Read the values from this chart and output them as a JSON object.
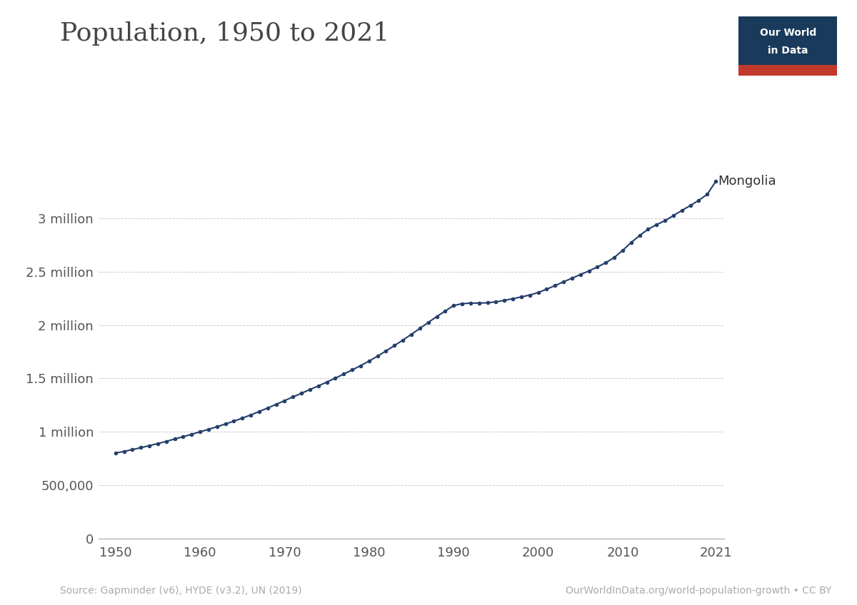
{
  "title": "Population, 1950 to 2021",
  "line_color": "#243f6b",
  "background_color": "#ffffff",
  "years": [
    1950,
    1951,
    1952,
    1953,
    1954,
    1955,
    1956,
    1957,
    1958,
    1959,
    1960,
    1961,
    1962,
    1963,
    1964,
    1965,
    1966,
    1967,
    1968,
    1969,
    1970,
    1971,
    1972,
    1973,
    1974,
    1975,
    1976,
    1977,
    1978,
    1979,
    1980,
    1981,
    1982,
    1983,
    1984,
    1985,
    1986,
    1987,
    1988,
    1989,
    1990,
    1991,
    1992,
    1993,
    1994,
    1995,
    1996,
    1997,
    1998,
    1999,
    2000,
    2001,
    2002,
    2003,
    2004,
    2005,
    2006,
    2007,
    2008,
    2009,
    2010,
    2011,
    2012,
    2013,
    2014,
    2015,
    2016,
    2017,
    2018,
    2019,
    2020,
    2021
  ],
  "population": [
    800000,
    816000,
    833000,
    851000,
    870000,
    889000,
    910000,
    932000,
    954000,
    976000,
    1000000,
    1023000,
    1047000,
    1073000,
    1099000,
    1128000,
    1158000,
    1190000,
    1223000,
    1257000,
    1292000,
    1327000,
    1361000,
    1396000,
    1430000,
    1466000,
    1503000,
    1541000,
    1580000,
    1620000,
    1663000,
    1709000,
    1758000,
    1808000,
    1860000,
    1913000,
    1969000,
    2025000,
    2080000,
    2132000,
    2184000,
    2201000,
    2206000,
    2207000,
    2209000,
    2218000,
    2232000,
    2248000,
    2264000,
    2282000,
    2305000,
    2337000,
    2370000,
    2406000,
    2440000,
    2474000,
    2508000,
    2545000,
    2585000,
    2634000,
    2701000,
    2774000,
    2840000,
    2898000,
    2942000,
    2979000,
    3027000,
    3075000,
    3121000,
    3170000,
    3226000,
    3347000
  ],
  "ylabel_ticks": [
    0,
    500000,
    1000000,
    1500000,
    2000000,
    2500000,
    3000000
  ],
  "ylabel_labels": [
    "0",
    "500,000",
    "1 million",
    "1.5 million",
    "2 million",
    "2.5 million",
    "3 million"
  ],
  "xticks": [
    1950,
    1960,
    1970,
    1980,
    1990,
    2000,
    2010,
    2021
  ],
  "source_text": "Source: Gapminder (v6), HYDE (v3.2), UN (2019)",
  "credit_text": "OurWorldInData.org/world-population-growth • CC BY",
  "label_text": "Mongolia",
  "owid_box_color": "#1a3a5c",
  "owid_red": "#c0392b"
}
